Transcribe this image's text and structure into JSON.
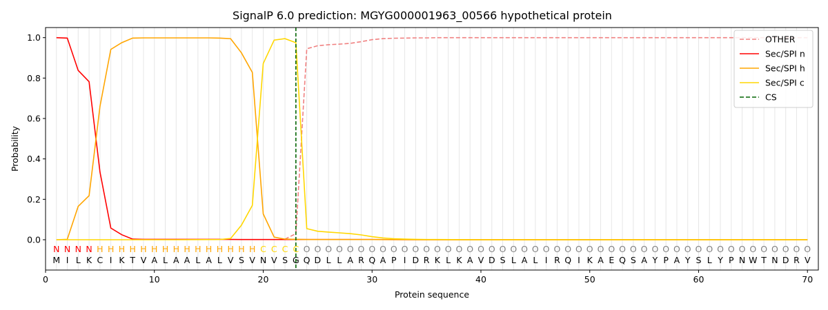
{
  "chart_data": {
    "type": "line",
    "title": "SignalP 6.0 prediction: MGYG000001963_00566 hypothetical protein",
    "xlabel": "Protein sequence",
    "ylabel": "Probability",
    "xlim": [
      0,
      71
    ],
    "ylim": [
      -0.15,
      1.05
    ],
    "xticks": [
      0,
      10,
      20,
      30,
      40,
      50,
      60,
      70
    ],
    "yticks": [
      0.0,
      0.2,
      0.4,
      0.6,
      0.8,
      1.0
    ],
    "legend_position": "top-right",
    "sequence": [
      "M",
      "I",
      "L",
      "K",
      "C",
      "I",
      "K",
      "T",
      "V",
      "A",
      "L",
      "A",
      "A",
      "L",
      "A",
      "L",
      "V",
      "S",
      "V",
      "N",
      "V",
      "S",
      "G",
      "Q",
      "D",
      "L",
      "L",
      "A",
      "R",
      "Q",
      "A",
      "P",
      "I",
      "D",
      "R",
      "K",
      "L",
      "K",
      "A",
      "V",
      "D",
      "S",
      "L",
      "A",
      "L",
      "I",
      "R",
      "Q",
      "I",
      "K",
      "A",
      "E",
      "Q",
      "S",
      "A",
      "Y",
      "P",
      "A",
      "Y",
      "S",
      "L",
      "Y",
      "P",
      "N",
      "W",
      "T",
      "N",
      "D",
      "R",
      "V"
    ],
    "region_labels": [
      "N",
      "N",
      "N",
      "N",
      "H",
      "H",
      "H",
      "H",
      "H",
      "H",
      "H",
      "H",
      "H",
      "H",
      "H",
      "H",
      "H",
      "H",
      "H",
      "C",
      "C",
      "C",
      "C",
      "O",
      "O",
      "O",
      "O",
      "O",
      "O",
      "O",
      "O",
      "O",
      "O",
      "O",
      "O",
      "O",
      "O",
      "O",
      "O",
      "O",
      "O",
      "O",
      "O",
      "O",
      "O",
      "O",
      "O",
      "O",
      "O",
      "O",
      "O",
      "O",
      "O",
      "O",
      "O",
      "O",
      "O",
      "O",
      "O",
      "O",
      "O",
      "O",
      "O",
      "O",
      "O",
      "O",
      "O",
      "O",
      "O",
      "O"
    ],
    "region_colors": {
      "N": "#ff0000",
      "H": "#ffa500",
      "C": "#ffd700",
      "O": "#808080"
    },
    "cleavage_site": 23,
    "series": [
      {
        "name": "OTHER",
        "color": "#f08080",
        "dash": true,
        "x": [
          22,
          23,
          24,
          25,
          26,
          27,
          28,
          29,
          30,
          31,
          32,
          33,
          34,
          35,
          36,
          37,
          38,
          39,
          40,
          41,
          42,
          43,
          44,
          45,
          46,
          47,
          48,
          49,
          50,
          51,
          52,
          53,
          54,
          55,
          56,
          57,
          58,
          59,
          60,
          61,
          62,
          63,
          64,
          65,
          66,
          67,
          68,
          69,
          70
        ],
        "values": [
          0.003,
          0.03,
          0.945,
          0.96,
          0.965,
          0.968,
          0.972,
          0.98,
          0.99,
          0.995,
          0.997,
          0.998,
          0.999,
          0.999,
          1.0,
          1.0,
          1.0,
          1.0,
          1.0,
          1.0,
          1.0,
          1.0,
          1.0,
          1.0,
          1.0,
          1.0,
          1.0,
          1.0,
          1.0,
          1.0,
          1.0,
          1.0,
          1.0,
          1.0,
          1.0,
          1.0,
          1.0,
          1.0,
          1.0,
          1.0,
          1.0,
          1.0,
          1.0,
          1.0,
          1.0,
          1.0,
          1.0,
          1.0,
          1.0
        ]
      },
      {
        "name": "Sec/SPI n",
        "color": "#ff0000",
        "dash": false,
        "x": [
          1,
          2,
          3,
          4,
          5,
          6,
          7,
          8,
          9,
          10,
          12,
          14,
          16,
          18,
          20,
          22,
          24,
          26,
          28,
          30,
          35,
          40,
          45,
          50,
          55,
          60,
          65,
          70
        ],
        "values": [
          1.0,
          0.998,
          0.838,
          0.782,
          0.335,
          0.058,
          0.025,
          0.003,
          0.002,
          0.002,
          0.002,
          0.002,
          0.002,
          0.001,
          0.001,
          0.001,
          0.001,
          0.001,
          0.001,
          0.001,
          0.0,
          0.0,
          0.0,
          0.0,
          0.0,
          0.0,
          0.0,
          0.0
        ]
      },
      {
        "name": "Sec/SPI h",
        "color": "#ffa500",
        "dash": false,
        "x": [
          1,
          2,
          3,
          4,
          5,
          6,
          7,
          8,
          9,
          10,
          11,
          12,
          13,
          14,
          15,
          16,
          17,
          18,
          19,
          20,
          21,
          22,
          23,
          24,
          26,
          28,
          30,
          35,
          40,
          45,
          50,
          55,
          60,
          65,
          70
        ],
        "values": [
          0.0,
          0.002,
          0.165,
          0.218,
          0.66,
          0.942,
          0.975,
          0.998,
          0.999,
          0.999,
          0.999,
          0.999,
          0.999,
          0.999,
          0.999,
          0.998,
          0.995,
          0.925,
          0.828,
          0.128,
          0.013,
          0.003,
          0.002,
          0.001,
          0.001,
          0.001,
          0.001,
          0.0,
          0.0,
          0.0,
          0.0,
          0.0,
          0.0,
          0.0,
          0.0
        ]
      },
      {
        "name": "Sec/SPI c",
        "color": "#ffd700",
        "dash": false,
        "x": [
          1,
          4,
          8,
          12,
          16,
          17,
          18,
          19,
          20,
          21,
          22,
          23,
          24,
          25,
          26,
          27,
          28,
          29,
          30,
          31,
          32,
          33,
          34,
          35,
          36,
          40,
          45,
          50,
          55,
          60,
          65,
          70
        ],
        "values": [
          0.0,
          0.0,
          0.0,
          0.0,
          0.001,
          0.006,
          0.072,
          0.17,
          0.872,
          0.988,
          0.995,
          0.975,
          0.055,
          0.042,
          0.038,
          0.034,
          0.03,
          0.024,
          0.015,
          0.009,
          0.005,
          0.003,
          0.002,
          0.001,
          0.001,
          0.0,
          0.0,
          0.0,
          0.0,
          0.0,
          0.0,
          0.0
        ]
      }
    ],
    "legend": [
      {
        "label": "OTHER",
        "color": "#f08080",
        "dash": true
      },
      {
        "label": "Sec/SPI n",
        "color": "#ff0000",
        "dash": false
      },
      {
        "label": "Sec/SPI h",
        "color": "#ffa500",
        "dash": false
      },
      {
        "label": "Sec/SPI c",
        "color": "#ffd700",
        "dash": false
      },
      {
        "label": "CS",
        "color": "#006400",
        "dash": true
      }
    ]
  }
}
